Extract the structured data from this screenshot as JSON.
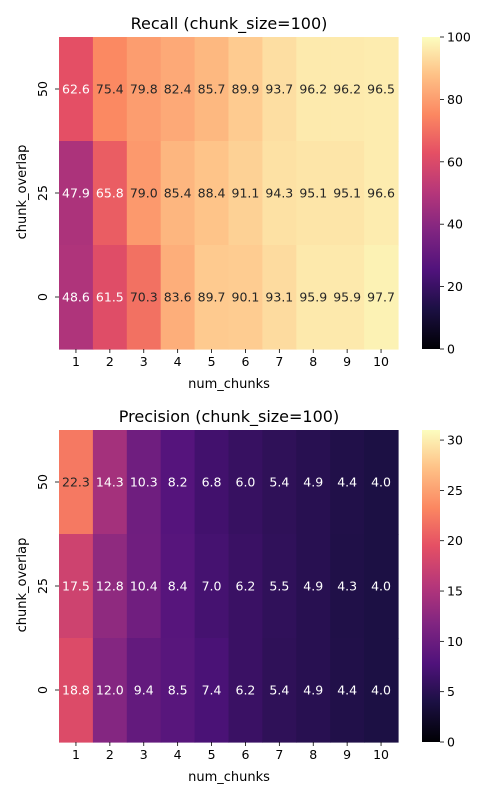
{
  "chart_data": [
    {
      "type": "heatmap",
      "title": "Recall (chunk_size=100)",
      "xlabel": "num_chunks",
      "ylabel": "chunk_overlap",
      "x_categories": [
        "1",
        "2",
        "3",
        "4",
        "5",
        "6",
        "7",
        "8",
        "9",
        "10"
      ],
      "y_categories": [
        "50",
        "25",
        "0"
      ],
      "values": [
        [
          62.6,
          75.4,
          79.8,
          82.4,
          85.7,
          89.9,
          93.7,
          96.2,
          96.2,
          96.5
        ],
        [
          47.9,
          65.8,
          79.0,
          85.4,
          88.4,
          91.1,
          94.3,
          95.1,
          95.1,
          96.6
        ],
        [
          48.6,
          61.5,
          70.3,
          83.6,
          89.7,
          90.1,
          93.1,
          95.9,
          95.9,
          97.7
        ]
      ],
      "colormap": "magma",
      "vmin": 0,
      "vmax": 100,
      "colorbar_ticks": [
        0,
        20,
        40,
        60,
        80,
        100
      ]
    },
    {
      "type": "heatmap",
      "title": "Precision (chunk_size=100)",
      "xlabel": "num_chunks",
      "ylabel": "chunk_overlap",
      "x_categories": [
        "1",
        "2",
        "3",
        "4",
        "5",
        "6",
        "7",
        "8",
        "9",
        "10"
      ],
      "y_categories": [
        "50",
        "25",
        "0"
      ],
      "values": [
        [
          22.3,
          14.3,
          10.3,
          8.2,
          6.8,
          6.0,
          5.4,
          4.9,
          4.4,
          4.0
        ],
        [
          17.5,
          12.8,
          10.4,
          8.4,
          7.0,
          6.2,
          5.5,
          4.9,
          4.3,
          4.0
        ],
        [
          18.8,
          12.0,
          9.4,
          8.5,
          7.4,
          6.2,
          5.4,
          4.9,
          4.4,
          4.0
        ]
      ],
      "colormap": "magma",
      "vmin": 0,
      "vmax": 31,
      "colorbar_ticks": [
        0,
        5,
        10,
        15,
        20,
        25,
        30
      ]
    }
  ]
}
